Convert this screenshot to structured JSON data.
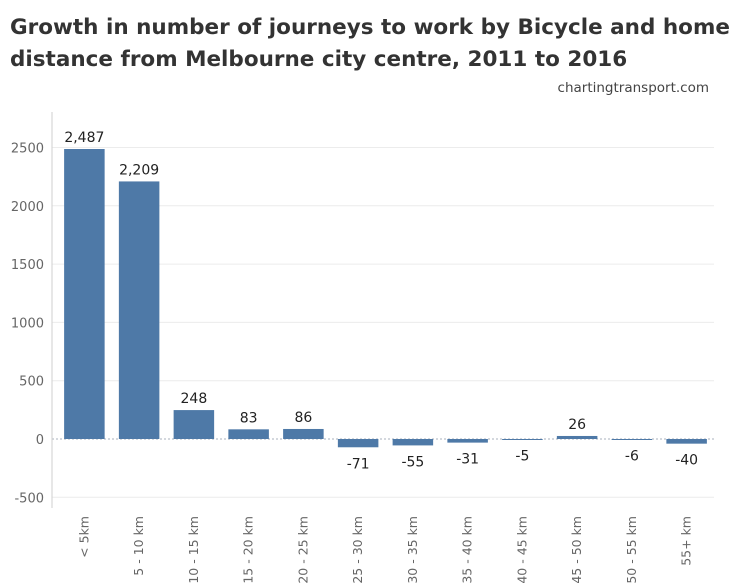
{
  "header": {
    "title_line1": "Growth in number of journeys to work by Bicycle and home",
    "title_line2": "distance from Melbourne city centre, 2011 to 2016",
    "source": "chartingtransport.com"
  },
  "colors": {
    "bar": "#4e79a7",
    "gridline": "#ececec",
    "zeroline": "#aab2bd",
    "axis": "#cfcfcf"
  },
  "chart_data": {
    "type": "bar",
    "title": "Growth in number of journeys to work by Bicycle and home distance from Melbourne city centre, 2011 to 2016",
    "xlabel": "",
    "ylabel": "",
    "ylim": [
      -600,
      2800
    ],
    "yticks": [
      -500,
      0,
      500,
      1000,
      1500,
      2000,
      2500
    ],
    "ytick_labels": [
      "-500",
      "0",
      "500",
      "1000",
      "1500",
      "2000",
      "2500"
    ],
    "categories": [
      "< 5km",
      "5 - 10 km",
      "10 - 15 km",
      "15 - 20 km",
      "20 - 25 km",
      "25 - 30 km",
      "30 - 35 km",
      "35 - 40 km",
      "40 - 45 km",
      "45 - 50 km",
      "50 - 55 km",
      "55+ km"
    ],
    "values": [
      2487,
      2209,
      248,
      83,
      86,
      -71,
      -55,
      -31,
      -5,
      26,
      -6,
      -40
    ],
    "value_labels": [
      "2,487",
      "2,209",
      "248",
      "83",
      "86",
      "-71",
      "-55",
      "-31",
      "-5",
      "26",
      "-6",
      "-40"
    ],
    "grid": true,
    "legend": "none"
  }
}
